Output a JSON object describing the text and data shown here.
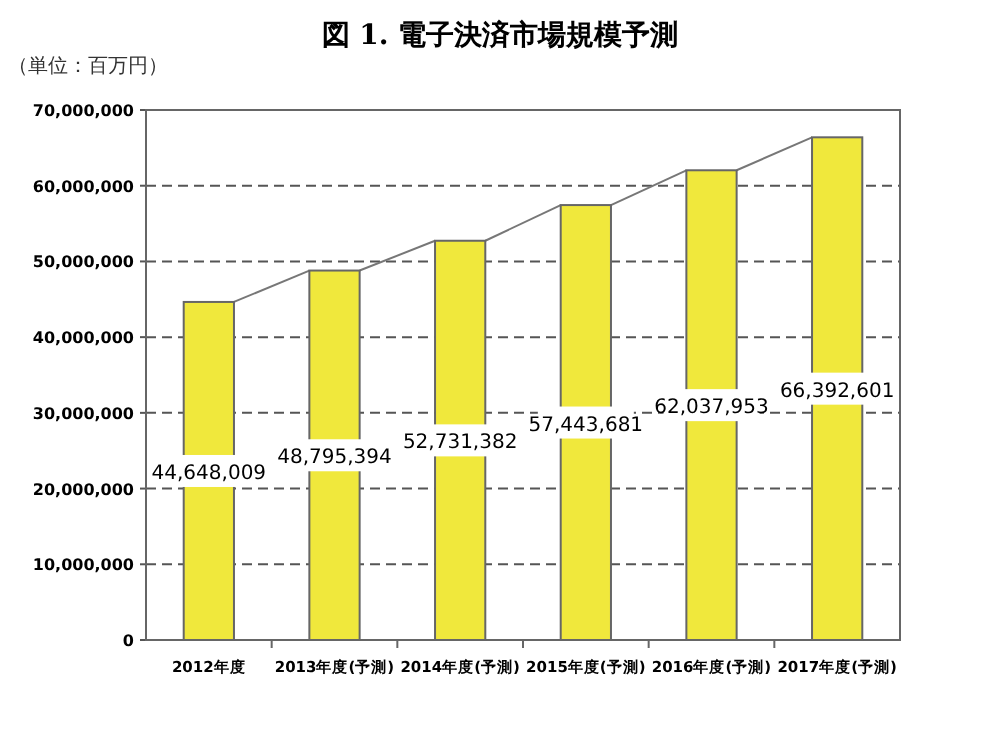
{
  "chart_data": {
    "type": "bar",
    "title": "図 1. 電子決済市場規模予測",
    "ylabel": "（単位：百万円）",
    "categories": [
      "2012年度",
      "2013年度(予測)",
      "2014年度(予測)",
      "2015年度(予測)",
      "2016年度(予測)",
      "2017年度(予測)"
    ],
    "values": [
      44648009,
      48795394,
      52731382,
      57443681,
      62037953,
      66392601
    ],
    "color": "#f0e83c",
    "value_labels": [
      "44,648,009",
      "48,795,394",
      "52,731,382",
      "57,443,681",
      "62,037,953",
      "66,392,601"
    ],
    "ylim": [
      0,
      70000000
    ],
    "yticks": [
      {
        "value": 0,
        "label": "0"
      },
      {
        "value": 10000000,
        "label": "10,000,000"
      },
      {
        "value": 20000000,
        "label": "20,000,000"
      },
      {
        "value": 30000000,
        "label": "30,000,000"
      },
      {
        "value": 40000000,
        "label": "40,000,000"
      },
      {
        "value": 50000000,
        "label": "50,000,000"
      },
      {
        "value": 60000000,
        "label": "60,000,000"
      },
      {
        "value": 70000000,
        "label": "70,000,000"
      }
    ],
    "grid": "y"
  }
}
